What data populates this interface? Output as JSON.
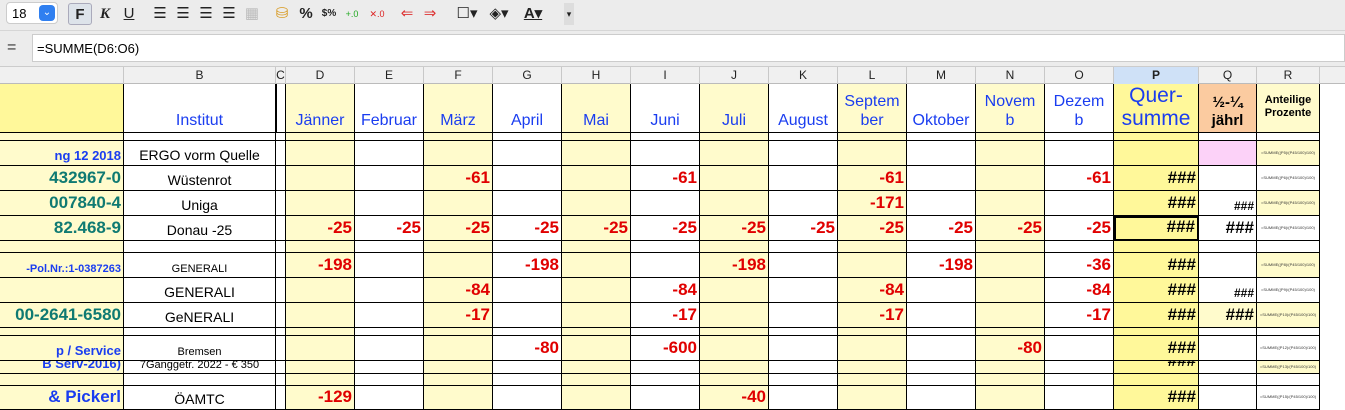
{
  "toolbar": {
    "font_size": "18",
    "bold": "F",
    "italic": "K",
    "underline": "U",
    "percent": "%"
  },
  "formula_bar": {
    "eq": "=",
    "formula": "=SUMME(D6:O6)"
  },
  "columns": [
    "",
    "B",
    "C",
    "D",
    "E",
    "F",
    "G",
    "H",
    "I",
    "J",
    "K",
    "L",
    "M",
    "N",
    "O",
    "P",
    "Q",
    "R"
  ],
  "selected_column": "P",
  "colors": {
    "yellow": "#fffbcc",
    "yellow_dark": "#fff89a",
    "header_blue": "#1a3df0",
    "red": "#e00000",
    "teal": "#0f7a72",
    "pink": "#fcd2f8",
    "orange": "#fbcba0"
  },
  "header_row": [
    "",
    "Institut",
    "",
    "Jänner",
    "Februar",
    "März",
    "April",
    "Mai",
    "Juni",
    "Juli",
    "August",
    "Septem ber",
    "Oktober",
    "Novem b",
    "Dezem b",
    "Quer- summe",
    "½-¼ jährl",
    "Anteilige Prozente"
  ],
  "rows": [
    {
      "a": "ng 12 2018",
      "b": "ERGO vorm Quelle",
      "vals": {},
      "p": "",
      "q": "",
      "r": "=SUMME((P5)/(P45/100)/100)"
    },
    {
      "a": "432967-0",
      "b": "Wüstenrot",
      "vals": {
        "F": "-61",
        "I": "-61",
        "L": "-61",
        "O": "-61"
      },
      "p": "###",
      "q": "",
      "r": "=SUMME((P6)/(P45/100)/100)"
    },
    {
      "a": "007840-4",
      "b": "Uniga",
      "vals": {
        "L": "-171"
      },
      "p": "###",
      "q": "###",
      "r": "=SUMME((P8)/(P45/100)/100)"
    },
    {
      "a": "82.468-9",
      "b": "Donau -25",
      "vals": {
        "D": "-25",
        "E": "-25",
        "F": "-25",
        "G": "-25",
        "H": "-25",
        "I": "-25",
        "J": "-25",
        "K": "-25",
        "L": "-25",
        "M": "-25",
        "N": "-25",
        "O": "-25"
      },
      "p": "###",
      "q": "###",
      "r": "=SUMME((P6)/(P45/100)/100)"
    },
    {
      "a": "-Pol.Nr.:1-0387263",
      "b": "GENERALI",
      "vals": {
        "D": "-198",
        "G": "-198",
        "J": "-198",
        "M": "-198",
        "O": "-36"
      },
      "p": "###",
      "q": "",
      "r": "=SUMME((P8)/(P45/100)/100)"
    },
    {
      "a": "",
      "b": "GENERALI",
      "vals": {
        "F": "-84",
        "I": "-84",
        "L": "-84",
        "O": "-84"
      },
      "p": "###",
      "q": "###",
      "r": "=SUMME((P9)/(P45/100)/100)"
    },
    {
      "a": "00-2641-6580",
      "b": "GeNERALI",
      "vals": {
        "F": "-17",
        "I": "-17",
        "L": "-17",
        "O": "-17"
      },
      "p": "###",
      "q": "###",
      "r": "=SUMME((P10)/(P45/100)/100)"
    },
    {
      "a": "p / Service",
      "b": "Bremsen",
      "vals": {
        "G": "-80",
        "I": "-600",
        "N": "-80"
      },
      "p": "###",
      "q": "",
      "r": "=SUMME((P12)/(P45/100)/100)"
    },
    {
      "a": "B Serv-2016)",
      "b": "7Ganggetr. 2022 - € 350",
      "vals": {},
      "p": "###",
      "q": "",
      "r": "=SUMME((P13)/(P45/100)/100)"
    },
    {
      "a": "& Pickerl",
      "b": "ÖAMTC",
      "vals": {
        "D": "-129",
        "J": "-40"
      },
      "p": "###",
      "q": "",
      "r": "=SUMME((P15)/(P45/100)/100)"
    }
  ]
}
